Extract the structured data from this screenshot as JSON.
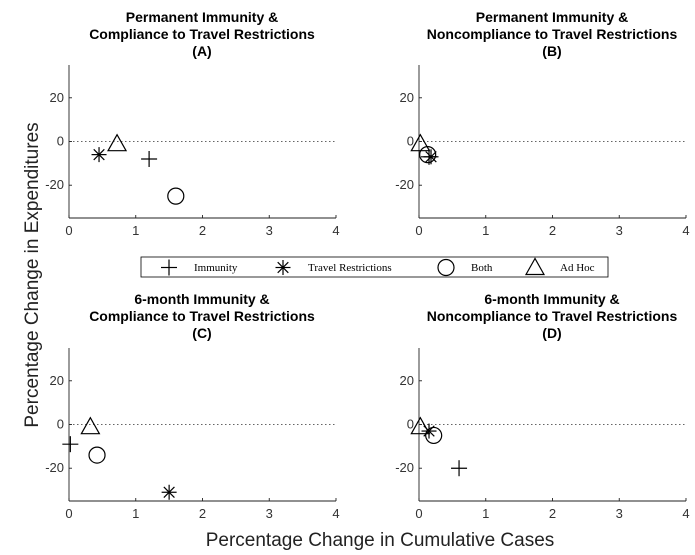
{
  "figure": {
    "ylabel": "Percentage Change in Expenditures",
    "xlabel": "Percentage Change in Cumulative Cases"
  },
  "legend": {
    "placement": "center",
    "items": [
      {
        "label": "Immunity",
        "marker": "plus"
      },
      {
        "label": "Travel Restrictions",
        "marker": "asterisk"
      },
      {
        "label": "Both",
        "marker": "circle"
      },
      {
        "label": "Ad Hoc",
        "marker": "triangle"
      }
    ]
  },
  "chart_data": [
    {
      "type": "scatter",
      "title_line1": "Permanent Immunity &",
      "title_line2": "Compliance to Travel Restrictions",
      "panel": "(A)",
      "xlim": [
        0,
        4
      ],
      "ylim": [
        -35,
        35
      ],
      "xticks": [
        0,
        1,
        2,
        3,
        4
      ],
      "yticks": [
        20,
        0,
        -20
      ],
      "reference_line_y": 0,
      "series": [
        {
          "name": "Immunity",
          "marker": "plus",
          "x": 1.2,
          "y": -8
        },
        {
          "name": "Travel Restrictions",
          "marker": "asterisk",
          "x": 0.45,
          "y": -6
        },
        {
          "name": "Both",
          "marker": "circle",
          "x": 1.6,
          "y": -25
        },
        {
          "name": "Ad Hoc",
          "marker": "triangle",
          "x": 0.72,
          "y": -1
        }
      ]
    },
    {
      "type": "scatter",
      "title_line1": "Permanent Immunity &",
      "title_line2": "Noncompliance to Travel Restrictions",
      "panel": "(B)",
      "xlim": [
        0,
        4
      ],
      "ylim": [
        -35,
        35
      ],
      "xticks": [
        0,
        1,
        2,
        3,
        4
      ],
      "yticks": [
        20,
        0,
        -20
      ],
      "reference_line_y": 0,
      "series": [
        {
          "name": "Immunity",
          "marker": "plus",
          "x": 0.15,
          "y": -7
        },
        {
          "name": "Travel Restrictions",
          "marker": "asterisk",
          "x": 0.18,
          "y": -7
        },
        {
          "name": "Both",
          "marker": "circle",
          "x": 0.13,
          "y": -6
        },
        {
          "name": "Ad Hoc",
          "marker": "triangle",
          "x": 0.02,
          "y": -1
        }
      ]
    },
    {
      "type": "scatter",
      "title_line1": "6-month Immunity &",
      "title_line2": "Compliance to Travel Restrictions",
      "panel": "(C)",
      "xlim": [
        0,
        4
      ],
      "ylim": [
        -35,
        35
      ],
      "xticks": [
        0,
        1,
        2,
        3,
        4
      ],
      "yticks": [
        20,
        0,
        -20
      ],
      "reference_line_y": 0,
      "series": [
        {
          "name": "Immunity",
          "marker": "plus",
          "x": 0.02,
          "y": -9
        },
        {
          "name": "Travel Restrictions",
          "marker": "asterisk",
          "x": 1.5,
          "y": -31
        },
        {
          "name": "Both",
          "marker": "circle",
          "x": 0.42,
          "y": -14
        },
        {
          "name": "Ad Hoc",
          "marker": "triangle",
          "x": 0.32,
          "y": -1
        }
      ]
    },
    {
      "type": "scatter",
      "title_line1": "6-month Immunity &",
      "title_line2": "Noncompliance to Travel Restrictions",
      "panel": "(D)",
      "xlim": [
        0,
        4
      ],
      "ylim": [
        -35,
        35
      ],
      "xticks": [
        0,
        1,
        2,
        3,
        4
      ],
      "yticks": [
        20,
        0,
        -20
      ],
      "reference_line_y": 0,
      "series": [
        {
          "name": "Immunity",
          "marker": "plus",
          "x": 0.6,
          "y": -20
        },
        {
          "name": "Travel Restrictions",
          "marker": "asterisk",
          "x": 0.15,
          "y": -3
        },
        {
          "name": "Both",
          "marker": "circle",
          "x": 0.22,
          "y": -5
        },
        {
          "name": "Ad Hoc",
          "marker": "triangle",
          "x": 0.02,
          "y": -1
        }
      ]
    }
  ]
}
